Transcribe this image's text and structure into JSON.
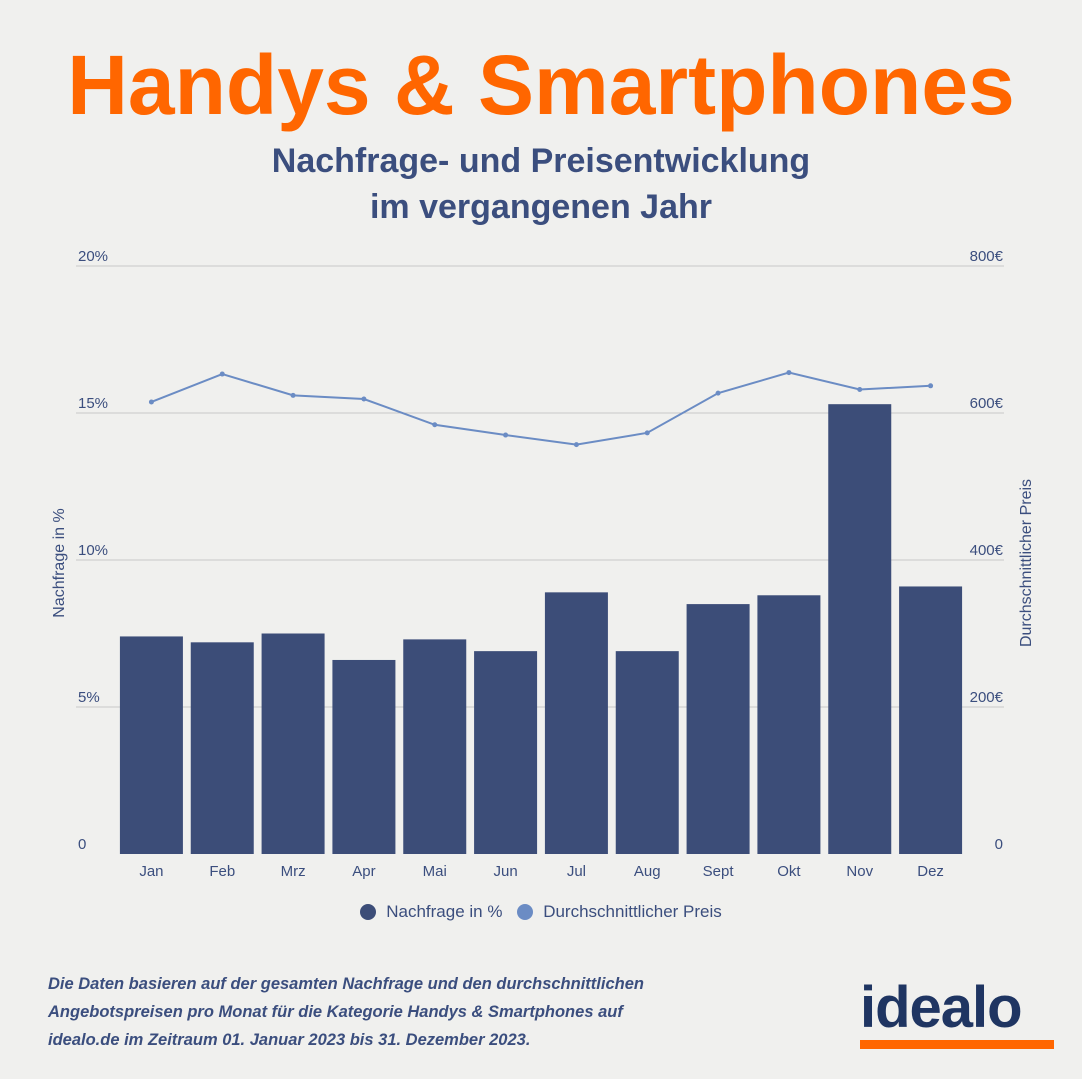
{
  "header": {
    "title": "Handys & Smartphones",
    "subtitle_line1": "Nachfrage- und Preisentwicklung",
    "subtitle_line2": "im vergangenen Jahr"
  },
  "colors": {
    "title": "#ff6600",
    "text": "#3b4e7e",
    "bars": "#3c4d78",
    "line": "#6b8cc4",
    "grid": "#c8c8c8",
    "logo": "#1f3562",
    "logo_bar": "#ff6600",
    "background": "#f0f0ee"
  },
  "chart_data": {
    "type": "bar",
    "categories": [
      "Jan",
      "Feb",
      "Mrz",
      "Apr",
      "Mai",
      "Jun",
      "Jul",
      "Aug",
      "Sept",
      "Okt",
      "Nov",
      "Dez"
    ],
    "series": [
      {
        "name": "Nachfrage in %",
        "type": "bar",
        "axis": "left",
        "values": [
          7.4,
          7.2,
          7.5,
          6.6,
          7.3,
          6.9,
          8.9,
          6.9,
          8.5,
          8.8,
          15.3,
          9.1
        ]
      },
      {
        "name": "Durchschnittlicher Preis",
        "type": "line",
        "axis": "right",
        "values": [
          615,
          653,
          624,
          619,
          584,
          570,
          557,
          573,
          627,
          655,
          632,
          637
        ]
      }
    ],
    "left_axis": {
      "title": "Nachfrage in %",
      "ylim": [
        0,
        20
      ],
      "ticks": [
        0,
        5,
        10,
        15,
        20
      ],
      "tick_labels": [
        "0",
        "5%",
        "10%",
        "15%",
        "20%"
      ]
    },
    "right_axis": {
      "title": "Durchschnittlicher Preis",
      "ylim": [
        0,
        800
      ],
      "ticks": [
        0,
        200,
        400,
        600,
        800
      ],
      "tick_labels": [
        "0",
        "200€",
        "400€",
        "600€",
        "800€"
      ]
    },
    "grid": true,
    "legend": [
      "Nachfrage in %",
      "Durchschnittlicher Preis"
    ],
    "legend_position": "bottom"
  },
  "legend": {
    "demand_label": "Nachfrage in %",
    "price_label": "Durchschnittlicher Preis"
  },
  "footnote": {
    "line1": "Die Daten basieren auf der gesamten Nachfrage und den durchschnittlichen",
    "line2": "Angebotspreisen pro Monat für die Kategorie Handys & Smartphones auf",
    "line3": "idealo.de im Zeitraum 01. Januar 2023 bis 31. Dezember 2023."
  },
  "logo": {
    "text": "idealo"
  }
}
